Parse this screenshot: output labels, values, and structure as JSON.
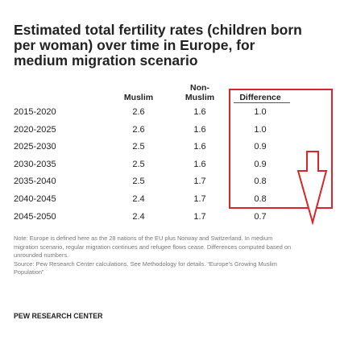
{
  "header": {
    "title": "Estimated total fertility rates (children born per woman) over time in Europe, for medium migration scenario"
  },
  "table": {
    "columns": [
      "Muslim",
      "Non-\nMuslim",
      "Difference"
    ],
    "rows": [
      [
        "2015-2020",
        "2.6",
        "1.6",
        "1.0"
      ],
      [
        "2020-2025",
        "2.6",
        "1.6",
        "1.0"
      ],
      [
        "2025-2030",
        "2.5",
        "1.6",
        "0.9"
      ],
      [
        "2030-2035",
        "2.5",
        "1.6",
        "0.9"
      ],
      [
        "2035-2040",
        "2.5",
        "1.7",
        "0.8"
      ],
      [
        "2040-2045",
        "2.4",
        "1.7",
        "0.8"
      ],
      [
        "2045-2050",
        "2.4",
        "1.7",
        "0.7"
      ]
    ]
  },
  "notes": {
    "note": "Note: Europe is defined here as the 28 nations of the EU plus Norway and Switzerland. In medium migration scenario, regular migration continues and refugee flows cease. Differences computed based on unrounded numbers.",
    "source": "Source: Pew Research Center calculations. See Methodology for details. “Europe’s Growing Muslim Population”"
  },
  "footer": {
    "org": "PEW RESEARCH CENTER"
  }
}
